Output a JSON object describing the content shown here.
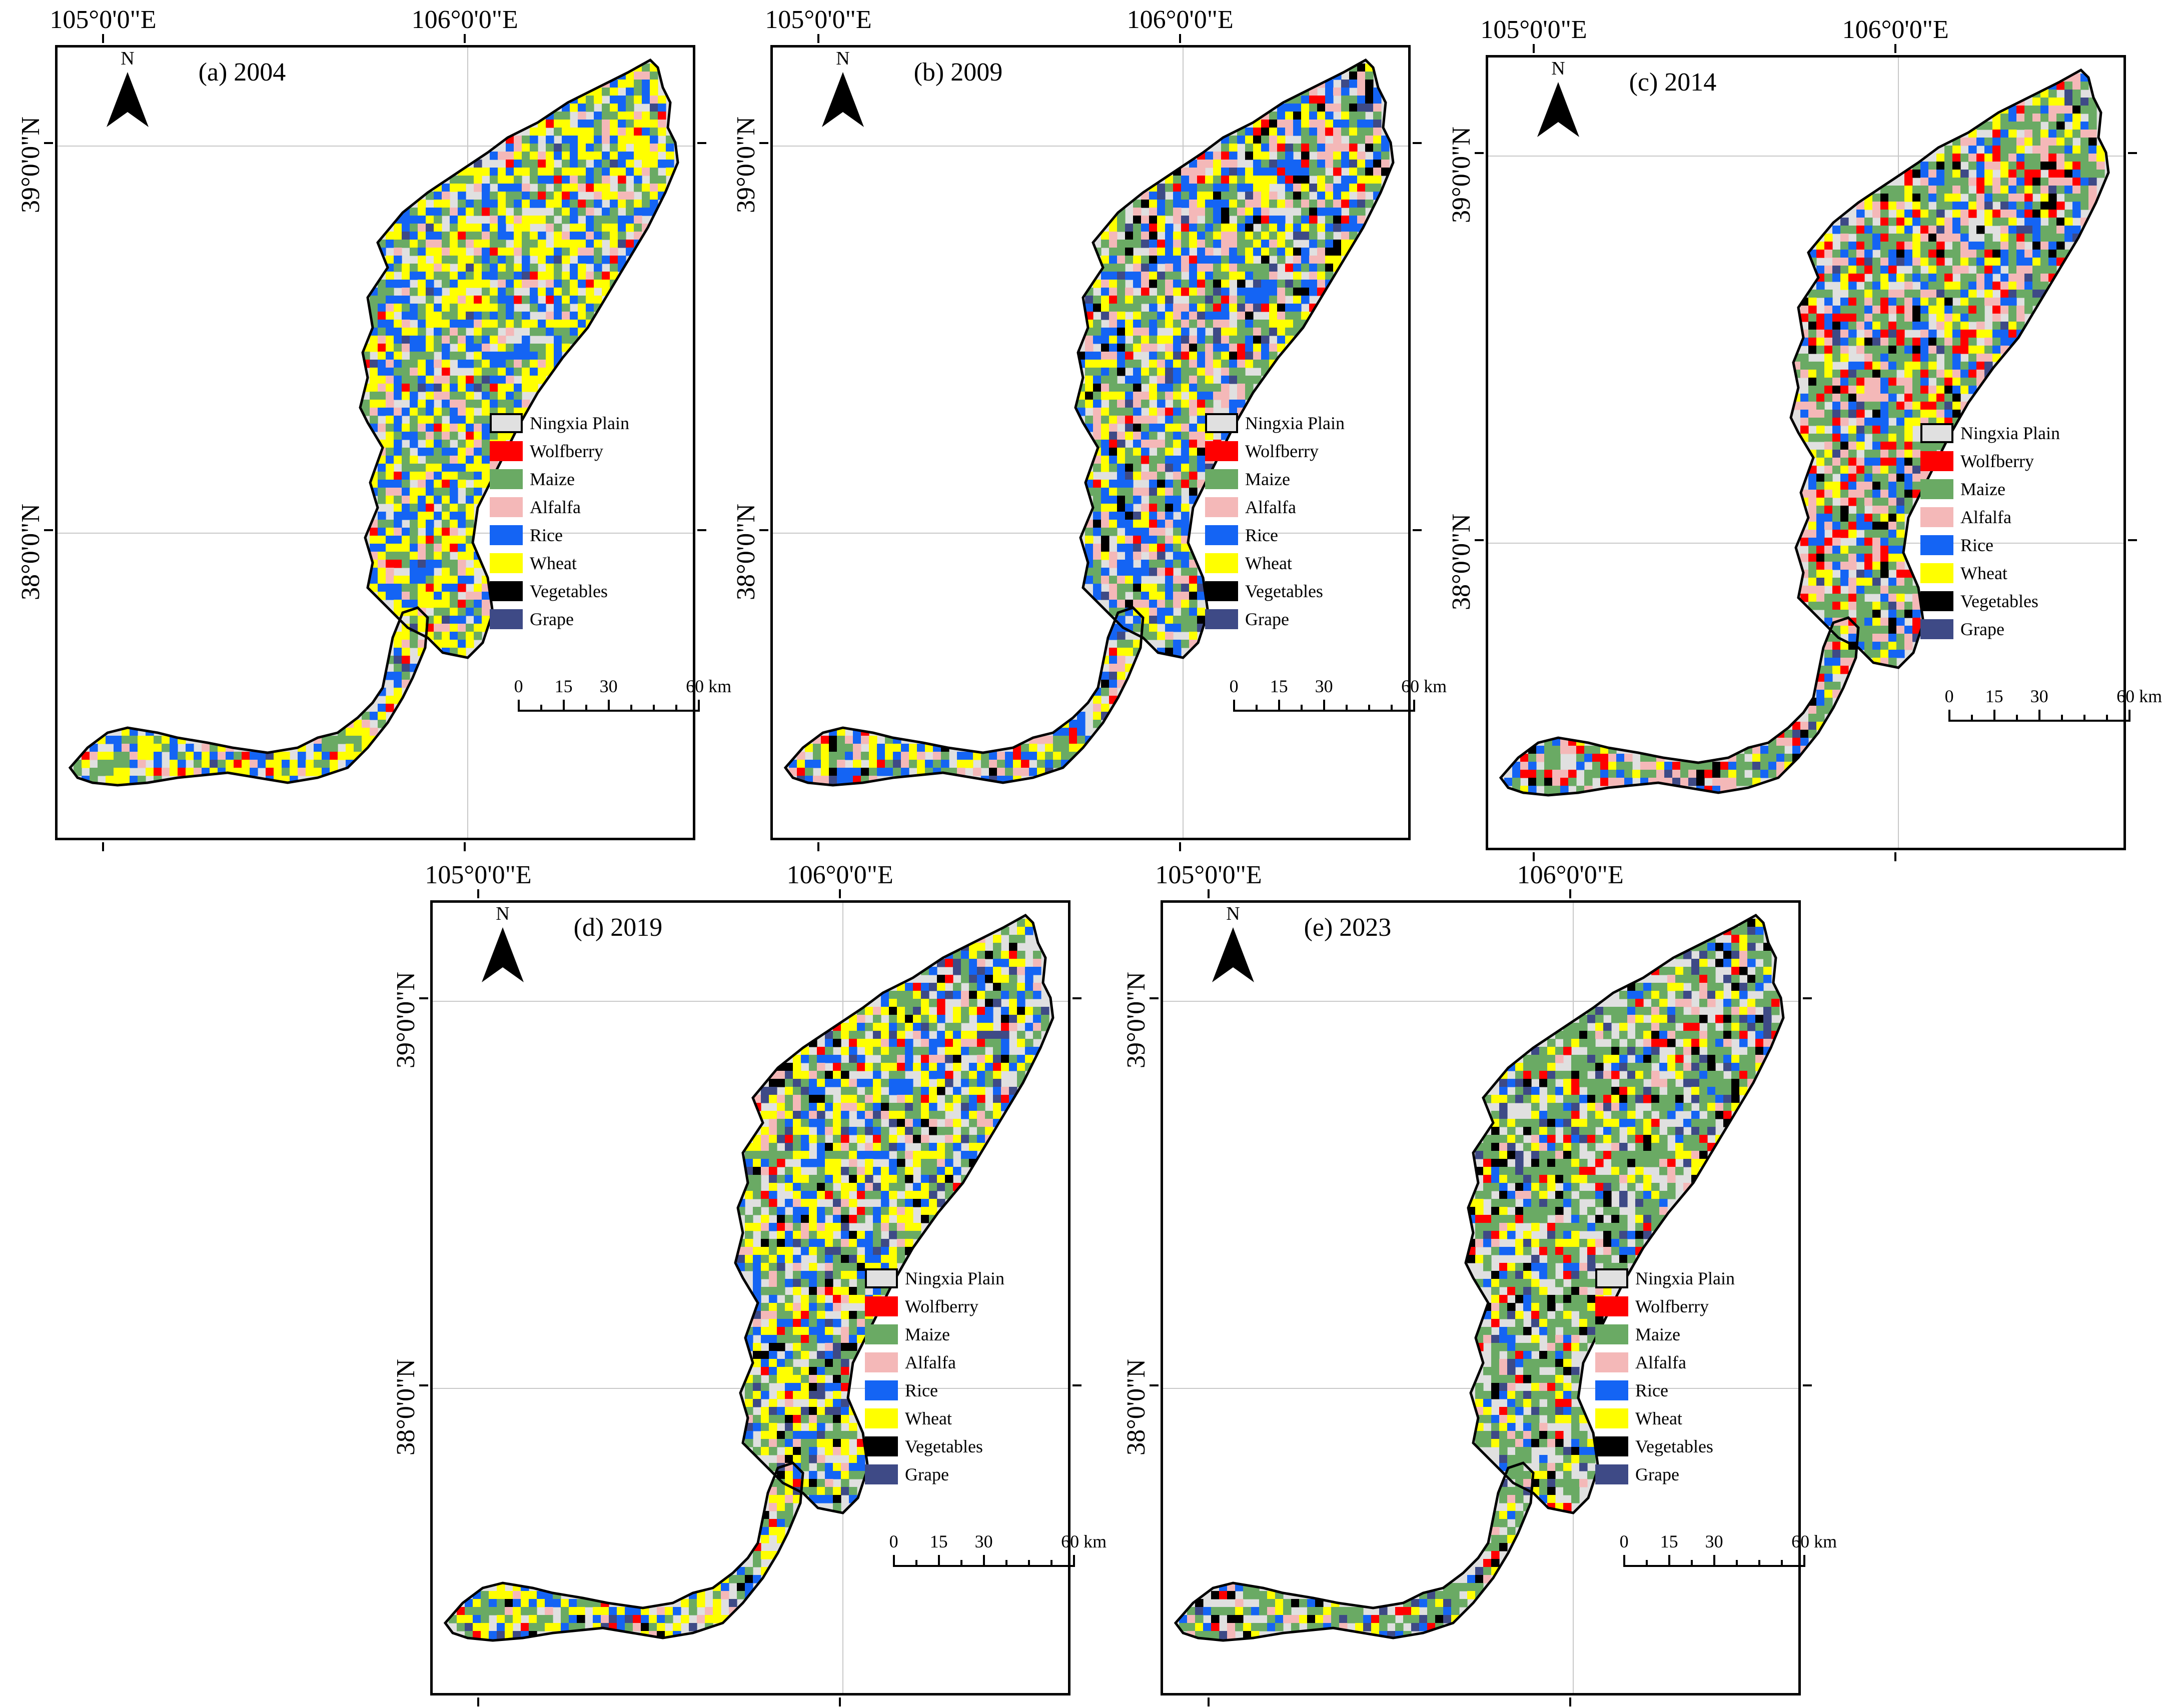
{
  "figure": {
    "panels": [
      {
        "id": "a",
        "title": "(a) 2004",
        "dominant": "wheat-rice"
      },
      {
        "id": "b",
        "title": "(b) 2009",
        "dominant": "rice-maize"
      },
      {
        "id": "c",
        "title": "(c) 2014",
        "dominant": "maize-wolfberry"
      },
      {
        "id": "d",
        "title": "(d) 2019",
        "dominant": "wheat-rice"
      },
      {
        "id": "e",
        "title": "(e) 2023",
        "dominant": "maize"
      }
    ],
    "axes": {
      "lon_labels": [
        "105°0'0\"E",
        "106°0'0\"E"
      ],
      "lat_labels": [
        "39°0'0\"N",
        "38°0'0\"N"
      ]
    },
    "north_arrow": {
      "label": "N"
    },
    "legend": [
      {
        "label": "Ningxia Plain",
        "color": "#e0e0e0",
        "outline": true
      },
      {
        "label": "Wolfberry",
        "color": "#ff0000"
      },
      {
        "label": "Maize",
        "color": "#6aaa64"
      },
      {
        "label": "Alfalfa",
        "color": "#f4b8b8"
      },
      {
        "label": "Rice",
        "color": "#1464f4"
      },
      {
        "label": "Wheat",
        "color": "#ffff00"
      },
      {
        "label": "Vegetables",
        "color": "#000000"
      },
      {
        "label": "Grape",
        "color": "#3e4a86"
      }
    ],
    "scale": {
      "ticks": [
        "0",
        "15",
        "30",
        "60 km"
      ]
    }
  }
}
